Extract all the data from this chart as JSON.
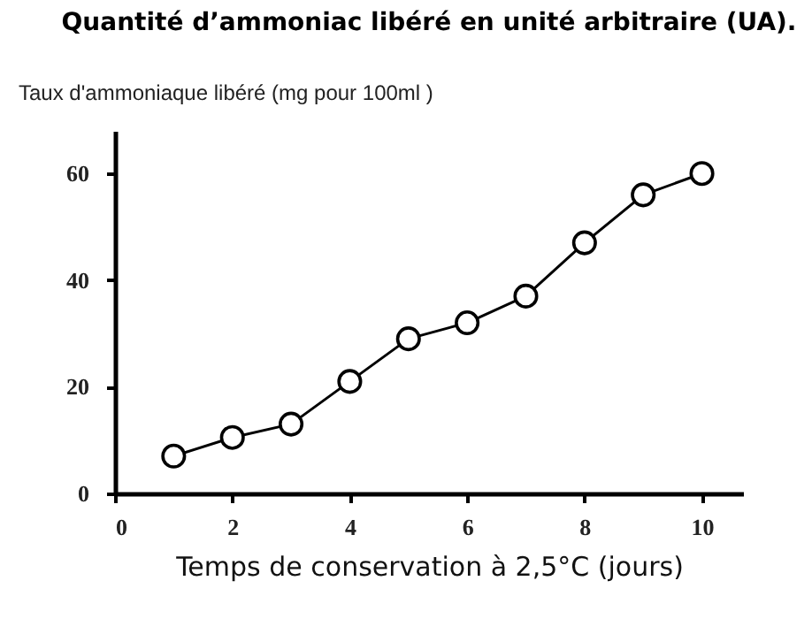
{
  "chart_data": {
    "type": "line",
    "title": "Quantité d’ammoniac libéré en unité arbitraire (UA).",
    "xlabel": "Temps  de conservation à 2,5°C (jours)",
    "ylabel": "Taux d'ammoniaque libéré (mg pour 100ml )",
    "x": [
      1,
      2,
      3,
      4,
      5,
      6,
      7,
      8,
      9,
      10
    ],
    "series": [
      {
        "color": "#000000",
        "values": [
          7,
          10.5,
          13,
          21,
          29,
          32,
          37,
          47,
          56,
          60
        ]
      }
    ],
    "xlim": [
      0,
      10.7
    ],
    "xticks": [
      0,
      2,
      4,
      6,
      8,
      10
    ],
    "ylim": [
      0,
      68
    ],
    "yticks": [
      0,
      20,
      40,
      60
    ],
    "marker": "circle",
    "line_style": "solid",
    "grid": false,
    "legend": false
  }
}
